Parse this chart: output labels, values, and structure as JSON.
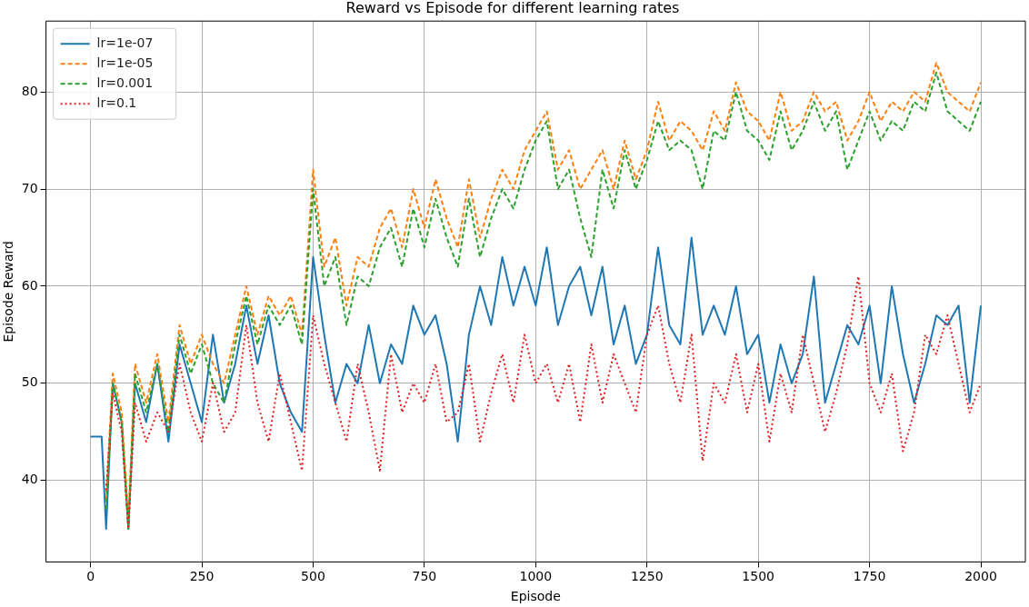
{
  "chart_data": {
    "type": "line",
    "title": "Reward vs Episode for different learning rates",
    "xlabel": "Episode",
    "ylabel": "Episode Reward",
    "x": [
      0,
      25,
      35,
      50,
      70,
      85,
      100,
      125,
      150,
      175,
      200,
      225,
      250,
      275,
      300,
      325,
      350,
      375,
      400,
      425,
      450,
      475,
      500,
      525,
      550,
      575,
      600,
      625,
      650,
      675,
      700,
      725,
      750,
      775,
      800,
      825,
      850,
      875,
      900,
      925,
      950,
      975,
      1000,
      1025,
      1050,
      1075,
      1100,
      1125,
      1150,
      1175,
      1200,
      1225,
      1250,
      1275,
      1300,
      1325,
      1350,
      1375,
      1400,
      1425,
      1450,
      1475,
      1500,
      1525,
      1550,
      1575,
      1600,
      1625,
      1650,
      1675,
      1700,
      1725,
      1750,
      1775,
      1800,
      1825,
      1850,
      1875,
      1900,
      1925,
      1950,
      1975,
      2000
    ],
    "series": [
      {
        "name": "lr=1e-07",
        "color": "#1f77b4",
        "line_style": "solid",
        "values": [
          44.5,
          44.5,
          35,
          50,
          46,
          35,
          50,
          46,
          52,
          44,
          54,
          50,
          46,
          55,
          48,
          52,
          58,
          52,
          57,
          50,
          47,
          45,
          63,
          55,
          48,
          52,
          50,
          56,
          50,
          54,
          52,
          58,
          55,
          57,
          52,
          44,
          55,
          60,
          56,
          63,
          58,
          62,
          58,
          64,
          56,
          60,
          62,
          57,
          62,
          54,
          58,
          52,
          55,
          64,
          56,
          54,
          65,
          55,
          58,
          55,
          60,
          53,
          55,
          48,
          54,
          50,
          53,
          61,
          48,
          52,
          56,
          54,
          58,
          50,
          60,
          53,
          48,
          52,
          57,
          56,
          58,
          48,
          58
        ]
      },
      {
        "name": "lr=1e-05",
        "color": "#ff7f0e",
        "line_style": "dashed",
        "values": [
          null,
          null,
          38,
          51,
          47,
          36,
          52,
          48,
          53,
          46,
          56,
          52,
          55,
          52,
          50,
          55,
          60,
          55,
          59,
          57,
          59,
          55,
          72,
          62,
          65,
          58,
          63,
          62,
          66,
          68,
          64,
          70,
          66,
          71,
          67,
          64,
          71,
          65,
          69,
          72,
          70,
          74,
          76,
          78,
          72,
          74,
          70,
          72,
          74,
          70,
          75,
          71,
          74,
          79,
          75,
          77,
          76,
          74,
          78,
          76,
          81,
          78,
          77,
          75,
          80,
          76,
          77,
          80,
          78,
          79,
          75,
          77,
          80,
          77,
          79,
          78,
          80,
          79,
          83,
          80,
          79,
          78,
          81
        ]
      },
      {
        "name": "lr=0.001",
        "color": "#2ca02c",
        "line_style": "dashed",
        "values": [
          null,
          null,
          37,
          50,
          46,
          35,
          51,
          47,
          52,
          45,
          55,
          51,
          54,
          50,
          48,
          54,
          59,
          54,
          58,
          56,
          58,
          54,
          70,
          60,
          63,
          56,
          61,
          60,
          64,
          66,
          62,
          68,
          64,
          69,
          65,
          62,
          69,
          63,
          67,
          70,
          68,
          72,
          75,
          77,
          70,
          72,
          67,
          63,
          72,
          68,
          74,
          70,
          73,
          77,
          74,
          75,
          74,
          70,
          76,
          75,
          80,
          76,
          75,
          73,
          78,
          74,
          76,
          79,
          76,
          78,
          72,
          75,
          78,
          75,
          77,
          76,
          79,
          78,
          82,
          78,
          77,
          76,
          79
        ]
      },
      {
        "name": "lr=0.1",
        "color": "#e02020",
        "line_style": "dotted",
        "values": [
          null,
          null,
          39,
          49,
          45,
          35,
          48,
          44,
          47,
          45,
          52,
          47,
          44,
          50,
          45,
          47,
          56,
          48,
          44,
          51,
          46,
          41,
          57,
          52,
          48,
          44,
          52,
          47,
          41,
          53,
          47,
          50,
          48,
          52,
          46,
          47,
          52,
          44,
          49,
          53,
          48,
          55,
          50,
          52,
          48,
          52,
          46,
          54,
          48,
          53,
          50,
          47,
          55,
          58,
          52,
          48,
          55,
          42,
          50,
          48,
          53,
          47,
          52,
          44,
          51,
          47,
          55,
          50,
          45,
          49,
          54,
          61,
          50,
          47,
          51,
          43,
          47,
          55,
          53,
          57,
          52,
          47,
          50
        ]
      }
    ],
    "xlim": [
      -100,
      2100
    ],
    "ylim": [
      31.6,
      87.3
    ],
    "xticks": [
      0,
      250,
      500,
      750,
      1000,
      1250,
      1500,
      1750,
      2000
    ],
    "yticks": [
      40,
      50,
      60,
      70,
      80
    ],
    "grid": true,
    "legend": "top left",
    "marker": "none"
  }
}
